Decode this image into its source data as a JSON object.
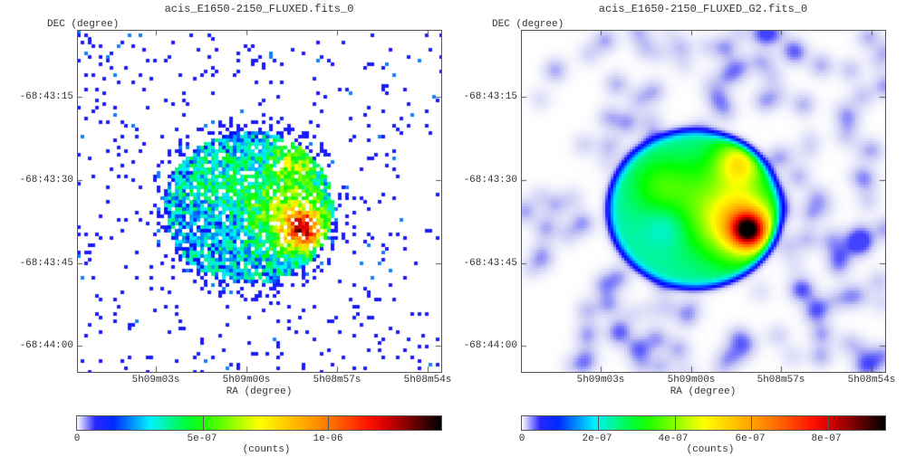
{
  "chart_data": [
    {
      "type": "heatmap",
      "title": "acis_E1650-2150_FLUXED.fits_0",
      "xlabel": "RA (degree)",
      "ylabel": "DEC (degree)",
      "x_ticks": [
        "5h09m03s",
        "5h09m00s",
        "5h08m57s",
        "5h08m54s"
      ],
      "y_ticks": [
        "-68:43:15",
        "-68:43:30",
        "-68:43:45",
        "-68:44:00"
      ],
      "colorbar": {
        "label": "(counts)",
        "ticks": [
          "0",
          "5e-07",
          "1e-06"
        ],
        "tick_values": [
          0,
          5e-07,
          1e-06
        ],
        "range": [
          0,
          1.45e-06
        ],
        "colormap": "jet-like (white-blue-cyan-green-yellow-red-black)"
      }
    },
    {
      "type": "heatmap",
      "title": "acis_E1650-2150_FLUXED_G2.fits_0",
      "xlabel": "RA (degree)",
      "ylabel": "DEC (degree)",
      "x_ticks": [
        "5h09m03s",
        "5h09m00s",
        "5h08m57s",
        "5h08m54s"
      ],
      "y_ticks": [
        "-68:43:15",
        "-68:43:30",
        "-68:43:45",
        "-68:44:00"
      ],
      "colorbar": {
        "label": "(counts)",
        "ticks": [
          "0",
          "2e-07",
          "4e-07",
          "6e-07",
          "8e-07"
        ],
        "tick_values": [
          0,
          2e-07,
          4e-07,
          6e-07,
          8e-07
        ],
        "range": [
          0,
          9.5e-07
        ],
        "colormap": "jet-like (white-blue-cyan-green-yellow-red-black)"
      }
    }
  ]
}
